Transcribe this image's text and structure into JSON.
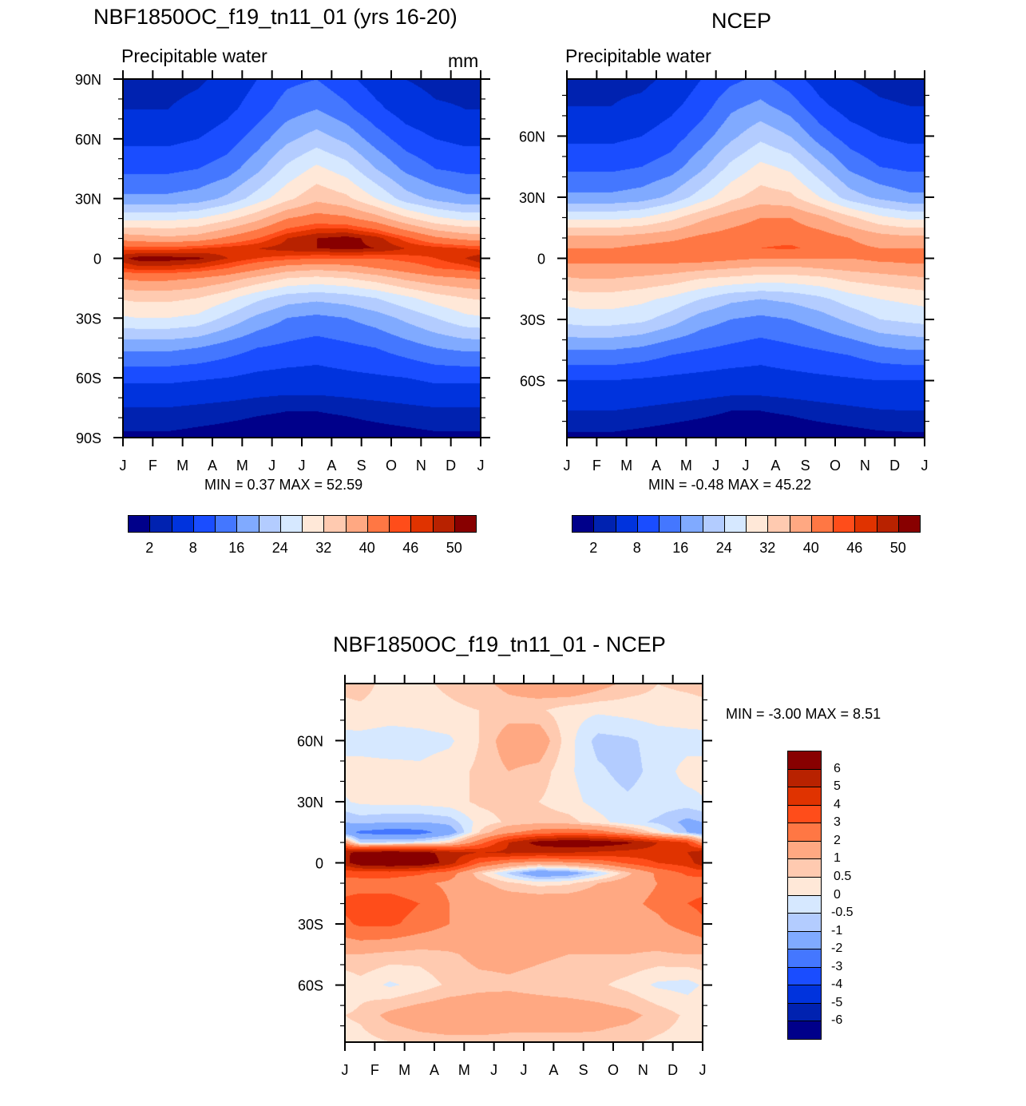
{
  "figure": {
    "panels": [
      {
        "id": "model",
        "title": "NBF1850OC_f19_tn11_01 (yrs 16-20)",
        "left_string": "Precipitable water",
        "right_string": "mm",
        "stats": "MIN =   0.37 MAX =  52.59"
      },
      {
        "id": "ncep",
        "title": "NCEP",
        "left_string": "Precipitable water",
        "right_string": "",
        "stats": "MIN =  -0.48 MAX =  45.22"
      },
      {
        "id": "diff",
        "title": "NBF1850OC_f19_tn11_01 - NCEP",
        "left_string": "",
        "right_string": "",
        "stats": "MIN =  -3.00 MAX =   8.51"
      }
    ]
  },
  "chart_data": [
    {
      "type": "heatmap",
      "title": "NBF1850OC_f19_tn11_01 (yrs 16-20)",
      "left_string": "Precipitable water",
      "units": "mm",
      "x_ticks": [
        "J",
        "F",
        "M",
        "A",
        "M",
        "J",
        "J",
        "A",
        "S",
        "O",
        "N",
        "D",
        "J"
      ],
      "y_ticks": [
        "90N",
        "60N",
        "30N",
        "0",
        "30S",
        "60S",
        "90S"
      ],
      "y_tick_values": [
        90,
        60,
        30,
        0,
        -30,
        -60,
        -90
      ],
      "ylim": [
        -90,
        90
      ],
      "xlim": [
        0,
        12
      ],
      "min": 0.37,
      "max": 52.59,
      "levels": [
        2,
        4,
        8,
        12,
        16,
        20,
        24,
        28,
        32,
        36,
        40,
        44,
        46,
        48,
        50
      ],
      "colorbar_labels": [
        "2",
        "8",
        "16",
        "24",
        "32",
        "40",
        "46",
        "50"
      ],
      "colors": [
        "#00008a",
        "#0022b0",
        "#0033dd",
        "#1a4dff",
        "#4477ff",
        "#80aaff",
        "#b3ccff",
        "#d6e8ff",
        "#ffe8d8",
        "#ffcab0",
        "#ffa882",
        "#ff7744",
        "#ff4d1a",
        "#e03300",
        "#b82200",
        "#880000"
      ],
      "grid_lat": [
        90,
        75,
        60,
        45,
        30,
        20,
        10,
        5,
        0,
        -5,
        -10,
        -20,
        -30,
        -45,
        -60,
        -75,
        -90
      ],
      "grid_month": [
        0.5,
        1.5,
        2.5,
        3.5,
        4.5,
        5.5,
        6.5,
        7.5,
        8.5,
        9.5,
        10.5,
        11.5
      ],
      "values": [
        [
          3,
          3,
          3.5,
          5,
          8,
          11,
          12,
          9,
          6,
          4,
          3,
          3
        ],
        [
          4,
          4,
          5,
          7,
          10,
          14,
          16,
          13,
          9,
          6,
          4.5,
          4
        ],
        [
          7,
          7,
          8,
          10,
          14,
          19,
          22,
          19,
          14,
          10,
          8,
          7
        ],
        [
          11,
          11,
          12,
          14,
          19,
          25,
          29,
          26,
          20,
          15,
          12,
          11
        ],
        [
          17,
          17,
          18,
          21,
          26,
          31,
          35,
          33,
          28,
          22,
          19,
          17
        ],
        [
          27,
          27,
          28,
          31,
          35,
          40,
          42,
          41,
          38,
          33,
          29,
          27
        ],
        [
          38,
          37,
          38,
          41,
          44,
          48,
          50,
          51,
          49,
          45,
          41,
          39
        ],
        [
          45,
          45,
          46,
          47,
          48,
          49,
          50,
          50.5,
          50,
          48,
          47,
          46
        ],
        [
          51,
          51,
          50.5,
          48,
          46,
          45,
          44,
          44,
          44,
          45,
          46,
          48
        ],
        [
          47,
          47,
          46,
          44,
          41,
          38,
          37,
          38,
          40,
          42,
          44,
          45
        ],
        [
          41,
          41,
          40,
          38,
          35,
          32,
          31,
          32,
          34,
          37,
          39,
          40
        ],
        [
          33,
          33,
          32,
          29,
          25,
          22,
          21,
          22,
          24,
          27,
          30,
          32
        ],
        [
          28,
          28,
          27,
          23,
          19,
          16,
          15,
          16,
          18,
          21,
          24,
          27
        ],
        [
          17,
          17,
          16,
          14,
          12,
          11,
          10,
          11,
          12,
          14,
          16,
          17
        ],
        [
          9,
          9,
          8.5,
          8,
          7,
          6.5,
          6.5,
          7,
          7.5,
          8,
          9,
          9
        ],
        [
          4,
          4,
          3.5,
          3,
          2.5,
          2.2,
          2.2,
          2.5,
          3,
          3.5,
          4,
          4
        ],
        [
          1.5,
          1.5,
          1.2,
          1,
          0.8,
          0.7,
          0.7,
          0.8,
          1,
          1.2,
          1.5,
          1.5
        ]
      ]
    },
    {
      "type": "heatmap",
      "title": "NCEP",
      "left_string": "Precipitable water",
      "x_ticks": [
        "J",
        "F",
        "M",
        "A",
        "M",
        "J",
        "J",
        "A",
        "S",
        "O",
        "N",
        "D",
        "J"
      ],
      "y_ticks": [
        "60N",
        "30N",
        "0",
        "30S",
        "60S"
      ],
      "y_tick_values": [
        60,
        30,
        0,
        -30,
        -60
      ],
      "ylim": [
        -88,
        88
      ],
      "xlim": [
        0,
        12
      ],
      "min": -0.48,
      "max": 45.22,
      "levels": [
        2,
        4,
        8,
        12,
        16,
        20,
        24,
        28,
        32,
        36,
        40,
        44,
        46,
        48,
        50
      ],
      "colorbar_labels": [
        "2",
        "8",
        "16",
        "24",
        "32",
        "40",
        "46",
        "50"
      ],
      "colors": [
        "#00008a",
        "#0022b0",
        "#0033dd",
        "#1a4dff",
        "#4477ff",
        "#80aaff",
        "#b3ccff",
        "#d6e8ff",
        "#ffe8d8",
        "#ffcab0",
        "#ffa882",
        "#ff7744",
        "#ff4d1a",
        "#e03300",
        "#b82200",
        "#880000"
      ],
      "grid_lat": [
        88,
        75,
        60,
        45,
        30,
        20,
        10,
        5,
        0,
        -5,
        -10,
        -20,
        -30,
        -45,
        -60,
        -75,
        -88
      ],
      "grid_month": [
        0.5,
        1.5,
        2.5,
        3.5,
        4.5,
        5.5,
        6.5,
        7.5,
        8.5,
        9.5,
        10.5,
        11.5
      ],
      "values": [
        [
          2.5,
          3,
          3,
          5,
          8,
          11,
          13,
          10,
          6,
          4,
          3,
          2.5
        ],
        [
          4,
          4,
          5,
          7,
          10,
          15,
          17,
          14,
          9,
          6,
          4.5,
          4
        ],
        [
          7,
          7,
          8,
          10,
          14,
          19,
          23,
          20,
          14,
          10,
          8,
          7
        ],
        [
          11,
          11,
          12,
          14,
          19,
          25,
          29,
          27,
          21,
          15,
          12,
          11
        ],
        [
          17,
          17,
          18,
          21,
          26,
          31,
          34,
          33,
          28,
          22,
          19,
          17
        ],
        [
          27,
          27,
          28,
          31,
          35,
          38,
          40,
          40,
          37,
          33,
          29,
          27
        ],
        [
          37,
          37,
          38,
          39,
          41,
          42,
          43,
          43,
          42,
          40,
          38,
          37
        ],
        [
          40,
          40,
          41,
          42,
          43,
          44,
          44,
          44.5,
          43,
          41,
          40,
          40
        ],
        [
          41,
          41,
          41,
          42,
          42,
          41,
          40,
          40,
          40,
          40,
          41,
          41
        ],
        [
          39,
          39,
          39,
          38,
          37,
          36,
          35,
          35,
          36,
          37,
          38,
          39
        ],
        [
          36,
          36,
          35,
          34,
          32,
          31,
          30,
          30,
          31,
          33,
          34,
          35
        ],
        [
          30,
          30,
          29,
          27,
          24,
          21,
          20,
          21,
          23,
          26,
          28,
          29
        ],
        [
          26,
          26,
          25,
          22,
          18,
          16,
          15,
          16,
          18,
          21,
          24,
          25
        ],
        [
          16,
          16,
          15,
          13,
          12,
          11,
          10,
          11,
          12,
          13,
          15,
          16
        ],
        [
          8,
          8,
          7.5,
          7,
          6.5,
          6,
          6,
          6.5,
          7,
          7.5,
          8,
          8
        ],
        [
          4,
          4,
          3.5,
          3,
          2.5,
          2,
          2,
          2.3,
          2.8,
          3.3,
          3.8,
          4
        ],
        [
          1.5,
          1.5,
          1.2,
          0.9,
          0.7,
          0.6,
          0.6,
          0.7,
          0.9,
          1.1,
          1.4,
          1.5
        ]
      ]
    },
    {
      "type": "heatmap",
      "title": "NBF1850OC_f19_tn11_01 - NCEP",
      "x_ticks": [
        "J",
        "F",
        "M",
        "A",
        "M",
        "J",
        "J",
        "A",
        "S",
        "O",
        "N",
        "D",
        "J"
      ],
      "y_ticks": [
        "60N",
        "30N",
        "0",
        "30S",
        "60S"
      ],
      "y_tick_values": [
        60,
        30,
        0,
        -30,
        -60
      ],
      "ylim": [
        -88,
        88
      ],
      "xlim": [
        0,
        12
      ],
      "min": -3.0,
      "max": 8.51,
      "levels": [
        -6,
        -5,
        -4,
        -3,
        -2,
        -1,
        -0.5,
        0,
        0.5,
        1,
        2,
        3,
        4,
        5,
        6
      ],
      "colorbar_labels": [
        "-6",
        "-5",
        "-4",
        "-3",
        "-2",
        "-1",
        "-0.5",
        "0",
        "0.5",
        "1",
        "2",
        "3",
        "4",
        "5",
        "6"
      ],
      "colors": [
        "#00008a",
        "#0022b0",
        "#0033dd",
        "#1a4dff",
        "#4477ff",
        "#80aaff",
        "#b3ccff",
        "#d6e8ff",
        "#ffe8d8",
        "#ffcab0",
        "#ffa882",
        "#ff7744",
        "#ff4d1a",
        "#e03300",
        "#b82200",
        "#880000"
      ],
      "grid_lat": [
        88,
        75,
        60,
        45,
        30,
        20,
        15,
        10,
        5,
        0,
        -5,
        -10,
        -20,
        -30,
        -45,
        -60,
        -75,
        -88
      ],
      "grid_month": [
        0.5,
        1.5,
        2.5,
        3.5,
        4.5,
        5.5,
        6.5,
        7.5,
        8.5,
        9.5,
        10.5,
        11.5
      ],
      "values": [
        [
          0.7,
          0.3,
          0.4,
          0.6,
          0.8,
          1.2,
          1.5,
          1.8,
          1.3,
          0.8,
          0.5,
          0.6
        ],
        [
          0.4,
          0.3,
          0.3,
          0.4,
          0.5,
          0.7,
          0.6,
          0.2,
          0.1,
          0.2,
          0.3,
          0.3
        ],
        [
          -0.2,
          -0.3,
          -0.2,
          -0.1,
          0.5,
          1.4,
          1.5,
          0.2,
          -0.7,
          -0.6,
          -0.3,
          -0.2
        ],
        [
          0.2,
          0.2,
          0.1,
          0.3,
          0.6,
          1.0,
          0.8,
          0.1,
          -0.4,
          -0.7,
          -0.3,
          0.2
        ],
        [
          0.1,
          0.2,
          0.2,
          0.3,
          0.6,
          0.7,
          0.5,
          0.2,
          -0.2,
          -0.4,
          -0.2,
          -0.2
        ],
        [
          -0.8,
          -1.0,
          -1.0,
          -0.8,
          0.2,
          0.6,
          0.8,
          0.7,
          0.2,
          -0.3,
          -0.6,
          -1.2
        ],
        [
          -2.2,
          -2.5,
          -2.4,
          -1.5,
          0.5,
          1.8,
          2.5,
          2.8,
          2.5,
          1.5,
          0.2,
          -1.0
        ],
        [
          -0.5,
          -0.4,
          -0.2,
          0.5,
          2.5,
          5.0,
          6.5,
          7.0,
          6.8,
          6.2,
          5.0,
          4.0
        ],
        [
          6.5,
          6.8,
          6.5,
          5.5,
          5.0,
          5.2,
          5.0,
          5.0,
          4.8,
          4.6,
          4.6,
          5.0
        ],
        [
          6.8,
          7.2,
          7.0,
          5.5,
          3.0,
          2.0,
          1.5,
          1.8,
          2.3,
          3.2,
          4.0,
          4.5
        ],
        [
          3.5,
          3.5,
          3.2,
          2.5,
          0.6,
          -0.6,
          -1.8,
          -1.5,
          -0.5,
          0.8,
          2.2,
          3.2
        ],
        [
          2.5,
          2.5,
          2.2,
          1.8,
          1.2,
          0.6,
          0.3,
          0.4,
          1.0,
          1.5,
          2.0,
          2.5
        ],
        [
          3.5,
          3.5,
          3.0,
          2.0,
          1.6,
          1.6,
          1.6,
          1.6,
          1.6,
          1.8,
          2.2,
          3.0
        ],
        [
          3.2,
          3.2,
          2.6,
          2.0,
          1.6,
          1.5,
          1.5,
          1.5,
          1.5,
          1.6,
          1.8,
          2.4
        ],
        [
          1.0,
          0.8,
          0.7,
          0.9,
          1.2,
          1.2,
          1.1,
          1.0,
          1.0,
          1.0,
          0.9,
          1.0
        ],
        [
          0.3,
          -0.1,
          0.2,
          0.6,
          0.8,
          0.9,
          0.8,
          0.7,
          0.6,
          0.3,
          -0.1,
          -0.2
        ],
        [
          0.6,
          1.2,
          1.5,
          1.6,
          1.6,
          1.4,
          1.4,
          1.4,
          1.3,
          1.2,
          0.8,
          0.4
        ],
        [
          0.3,
          0.5,
          0.7,
          0.8,
          0.8,
          0.8,
          0.8,
          0.8,
          0.8,
          0.6,
          0.4,
          0.3
        ]
      ]
    }
  ]
}
